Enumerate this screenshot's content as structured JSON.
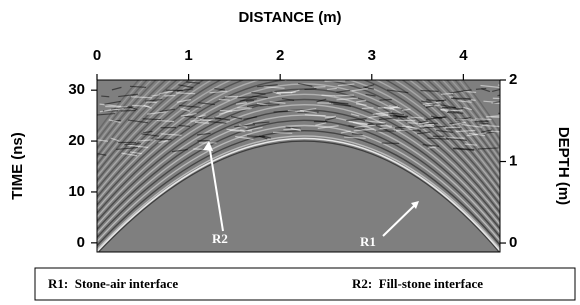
{
  "chart_data": {
    "type": "radargram",
    "x_label": "DISTANCE (m)",
    "y_label": "TIME (ns)",
    "y2_label": "DEPTH (m)",
    "xlim": [
      0,
      4.4
    ],
    "xticks": [
      0,
      1,
      2,
      3,
      4
    ],
    "ylim": [
      -1.8,
      32
    ],
    "yticks": [
      0,
      10,
      20,
      30
    ],
    "y2lim": [
      -0.11,
      2.0
    ],
    "y2ticks": [
      0,
      1,
      2
    ],
    "annotations": [
      "R2",
      "R1"
    ],
    "notes": [
      "R1:  Stone-air interface",
      "R2:  Fill-stone interface"
    ]
  }
}
